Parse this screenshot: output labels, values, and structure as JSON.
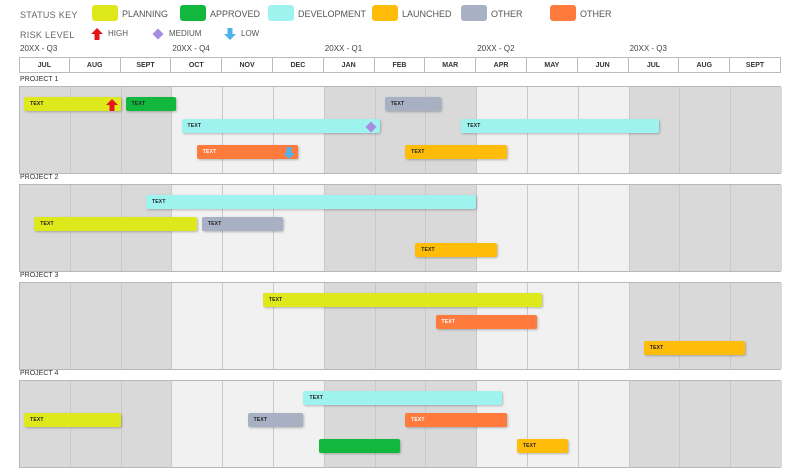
{
  "legend": {
    "status_title": "STATUS KEY",
    "risk_title": "RISK LEVEL",
    "statuses": [
      {
        "key": "planning",
        "label": "PLANNING",
        "color": "#dfe81a"
      },
      {
        "key": "approved",
        "label": "APPROVED",
        "color": "#12b83e"
      },
      {
        "key": "development",
        "label": "DEVELOPMENT",
        "color": "#9ef3ef"
      },
      {
        "key": "launched",
        "label": "LAUNCHED",
        "color": "#ffbd0a"
      },
      {
        "key": "other1",
        "label": "OTHER",
        "color": "#a8b0c3"
      },
      {
        "key": "other2",
        "label": "OTHER",
        "color": "#ff7b3d"
      }
    ],
    "risks": [
      {
        "key": "high",
        "label": "HIGH",
        "icon": "red-up-arrow-icon",
        "color": "#e4141b"
      },
      {
        "key": "medium",
        "label": "MEDIUM",
        "icon": "purple-diamond-icon",
        "color": "#a98ce0"
      },
      {
        "key": "low",
        "label": "LOW",
        "icon": "blue-down-arrow-icon",
        "color": "#4db3ea"
      }
    ]
  },
  "quarters": [
    "20XX - Q3",
    "20XX - Q4",
    "20XX - Q1",
    "20XX - Q2",
    "20XX - Q3"
  ],
  "months": [
    {
      "label": "JUL",
      "shade": "dark"
    },
    {
      "label": "AUG",
      "shade": "dark"
    },
    {
      "label": "SEPT",
      "shade": "dark"
    },
    {
      "label": "OCT",
      "shade": "light"
    },
    {
      "label": "NOV",
      "shade": "light"
    },
    {
      "label": "DEC",
      "shade": "light"
    },
    {
      "label": "JAN",
      "shade": "dark"
    },
    {
      "label": "FEB",
      "shade": "dark"
    },
    {
      "label": "MAR",
      "shade": "dark"
    },
    {
      "label": "APR",
      "shade": "light"
    },
    {
      "label": "MAY",
      "shade": "light"
    },
    {
      "label": "JUN",
      "shade": "light"
    },
    {
      "label": "JUL",
      "shade": "dark"
    },
    {
      "label": "AUG",
      "shade": "dark"
    },
    {
      "label": "SEPT",
      "shade": "dark"
    }
  ],
  "projects": [
    {
      "name": "PROJECT 1",
      "tasks": [
        {
          "label": "TEXT",
          "status": "planning",
          "start": 0.1,
          "end": 2.0,
          "lane": 0,
          "risk": "high"
        },
        {
          "label": "TEXT",
          "status": "approved",
          "start": 2.1,
          "end": 3.1,
          "lane": 0
        },
        {
          "label": "TEXT",
          "status": "development",
          "start": 3.2,
          "end": 7.1,
          "lane": 1,
          "risk": "medium"
        },
        {
          "label": "TEXT",
          "status": "other2",
          "start": 3.5,
          "end": 5.5,
          "lane": 2,
          "risk": "low"
        },
        {
          "label": "TEXT",
          "status": "other1",
          "start": 7.2,
          "end": 8.3,
          "lane": 0
        },
        {
          "label": "TEXT",
          "status": "development",
          "start": 8.7,
          "end": 12.6,
          "lane": 1
        },
        {
          "label": "TEXT",
          "status": "launched",
          "start": 7.6,
          "end": 9.6,
          "lane": 2
        }
      ]
    },
    {
      "name": "PROJECT 2",
      "tasks": [
        {
          "label": "TEXT",
          "status": "development",
          "start": 2.5,
          "end": 9.0,
          "lane": 0
        },
        {
          "label": "TEXT",
          "status": "planning",
          "start": 0.3,
          "end": 3.5,
          "lane": 1
        },
        {
          "label": "TEXT",
          "status": "other1",
          "start": 3.6,
          "end": 5.2,
          "lane": 1
        },
        {
          "label": "TEXT",
          "status": "launched",
          "start": 7.8,
          "end": 9.4,
          "lane": 2
        }
      ]
    },
    {
      "name": "PROJECT 3",
      "tasks": [
        {
          "label": "TEXT",
          "status": "planning",
          "start": 4.8,
          "end": 10.3,
          "lane": 0
        },
        {
          "label": "TEXT",
          "status": "other2",
          "start": 8.2,
          "end": 10.2,
          "lane": 1
        },
        {
          "label": "TEXT",
          "status": "launched",
          "start": 12.3,
          "end": 14.3,
          "lane": 2
        }
      ]
    },
    {
      "name": "PROJECT 4",
      "tasks": [
        {
          "label": "TEXT",
          "status": "development",
          "start": 5.6,
          "end": 9.5,
          "lane": 0
        },
        {
          "label": "TEXT",
          "status": "planning",
          "start": 0.1,
          "end": 2.0,
          "lane": 1
        },
        {
          "label": "TEXT",
          "status": "other1",
          "start": 4.5,
          "end": 5.6,
          "lane": 1
        },
        {
          "label": "TEXT",
          "status": "other2",
          "start": 7.6,
          "end": 9.6,
          "lane": 1
        },
        {
          "label": "",
          "status": "approved",
          "start": 5.9,
          "end": 7.5,
          "lane": 2
        },
        {
          "label": "TEXT",
          "status": "launched",
          "start": 9.8,
          "end": 10.8,
          "lane": 2
        }
      ]
    }
  ]
}
